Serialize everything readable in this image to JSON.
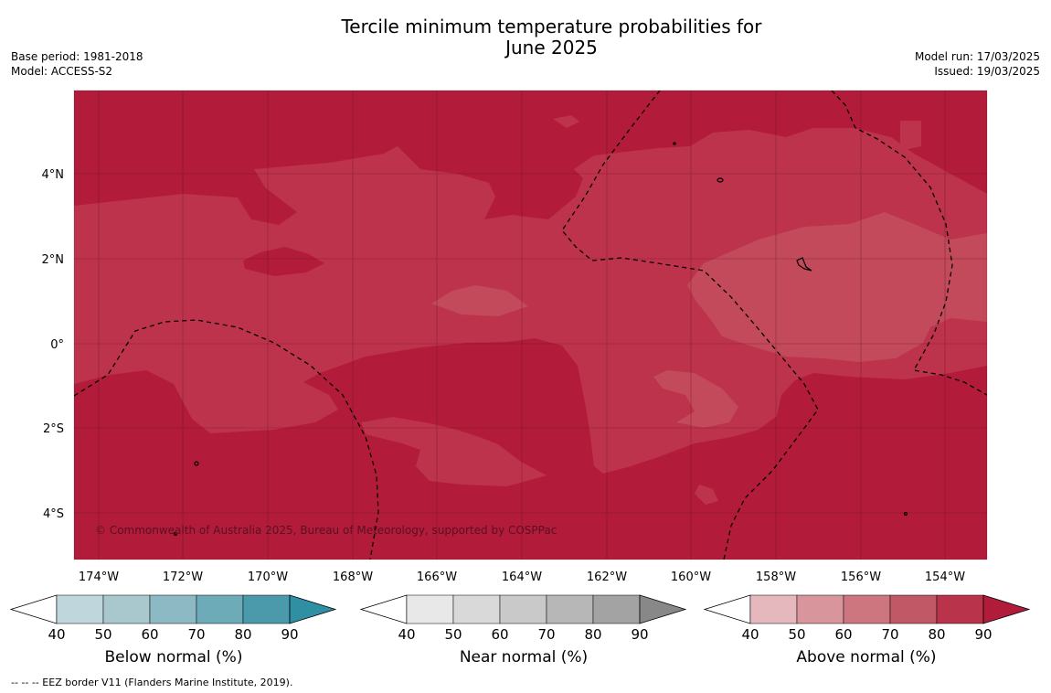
{
  "title_line1": "Tercile minimum temperature probabilities for",
  "title_line2": "June 2025",
  "base_period": "Base period: 1981-2018",
  "model": "Model: ACCESS-S2",
  "model_run": "Model run: 17/03/2025",
  "issued": "Issued: 19/03/2025",
  "copyright": "© Commonwealth of Australia 2025, Bureau of Meteorology, supported by COSPPac",
  "footer": "--  --  -- EEZ border V11 (Flanders Marine Institute, 2019).",
  "map": {
    "lon_labels": [
      "174°W",
      "172°W",
      "170°W",
      "168°W",
      "166°W",
      "164°W",
      "162°W",
      "160°W",
      "158°W",
      "156°W",
      "154°W"
    ],
    "lat_labels": [
      "4°N",
      "2°N",
      "0°",
      "2°S",
      "4°S"
    ],
    "colors": {
      "dark": "#b21c3a",
      "mid": "#bd334c",
      "light": "#c24a5a"
    }
  },
  "colorbars": [
    {
      "label": "Below normal (%)",
      "ticks": [
        "40",
        "50",
        "60",
        "70",
        "80",
        "90"
      ],
      "colors": [
        "#bfd6dd",
        "#a8c8ce",
        "#8db9c4",
        "#6eabb9",
        "#4a9aab",
        "#2f8fa3"
      ]
    },
    {
      "label": "Near normal (%)",
      "ticks": [
        "40",
        "50",
        "60",
        "70",
        "80",
        "90"
      ],
      "colors": [
        "#e8e8e8",
        "#d9d9d9",
        "#c9c9c9",
        "#b7b7b7",
        "#a3a3a3",
        "#888888"
      ]
    },
    {
      "label": "Above normal (%)",
      "ticks": [
        "40",
        "50",
        "60",
        "70",
        "80",
        "90"
      ],
      "colors": [
        "#e4b8bd",
        "#d9959c",
        "#cd7680",
        "#c15866",
        "#b9334a",
        "#b01c3a"
      ]
    }
  ]
}
